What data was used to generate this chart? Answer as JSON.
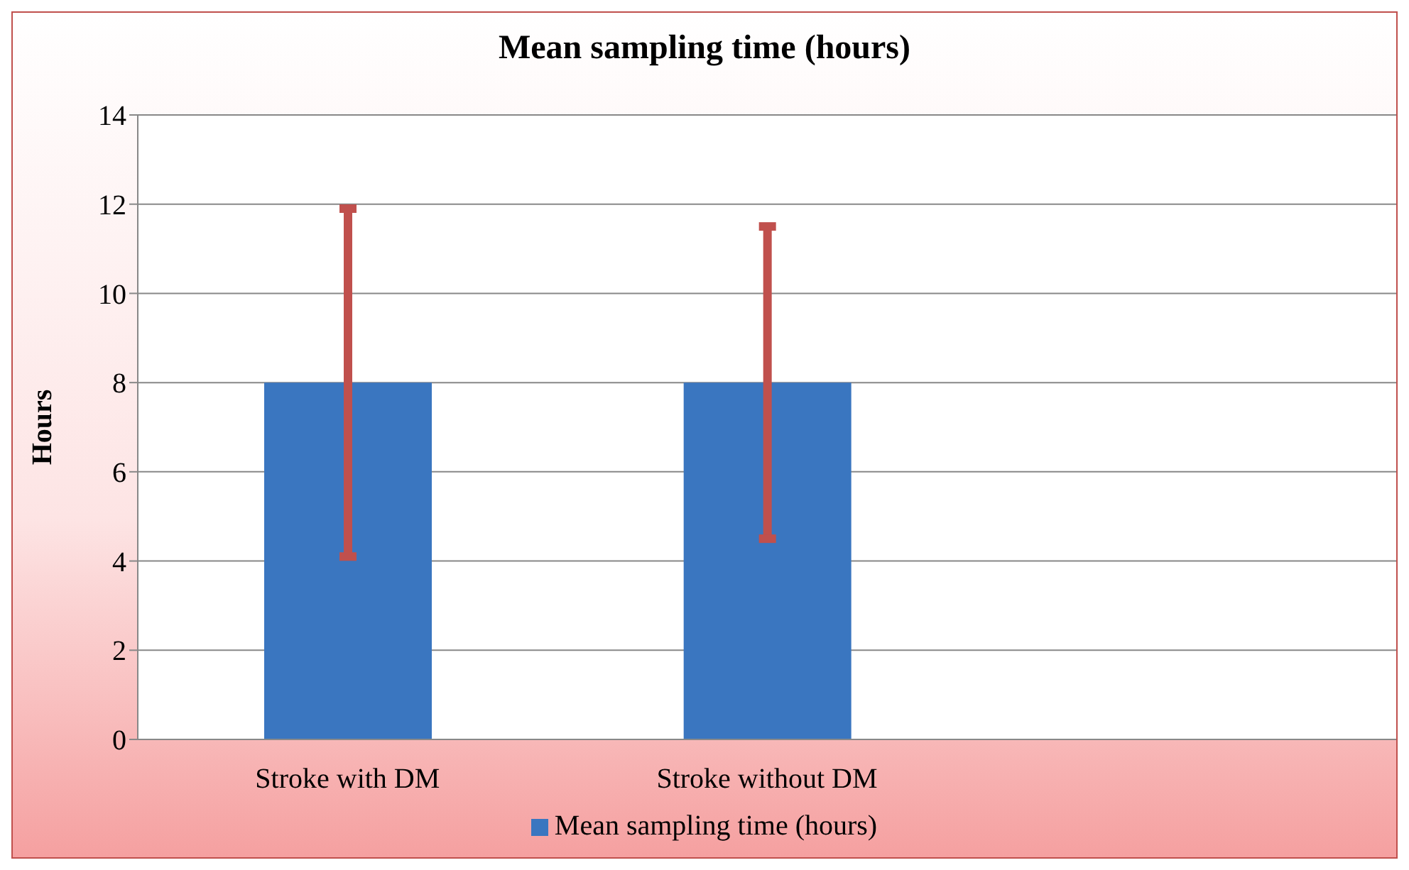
{
  "chart_data": {
    "type": "bar",
    "title": "Mean sampling time (hours)",
    "ylabel": "Hours",
    "categories": [
      "Stroke with DM",
      "Stroke without DM",
      null
    ],
    "series": [
      {
        "name": "Mean sampling time (hours)",
        "color": "#3a76c0",
        "values": [
          8,
          8,
          null
        ],
        "errors": [
          3.9,
          3.5,
          null
        ]
      }
    ],
    "ylim": [
      0,
      14
    ],
    "yticks": [
      0,
      2,
      4,
      6,
      8,
      10,
      12,
      14
    ],
    "grid": "y",
    "legend": "bottom"
  }
}
